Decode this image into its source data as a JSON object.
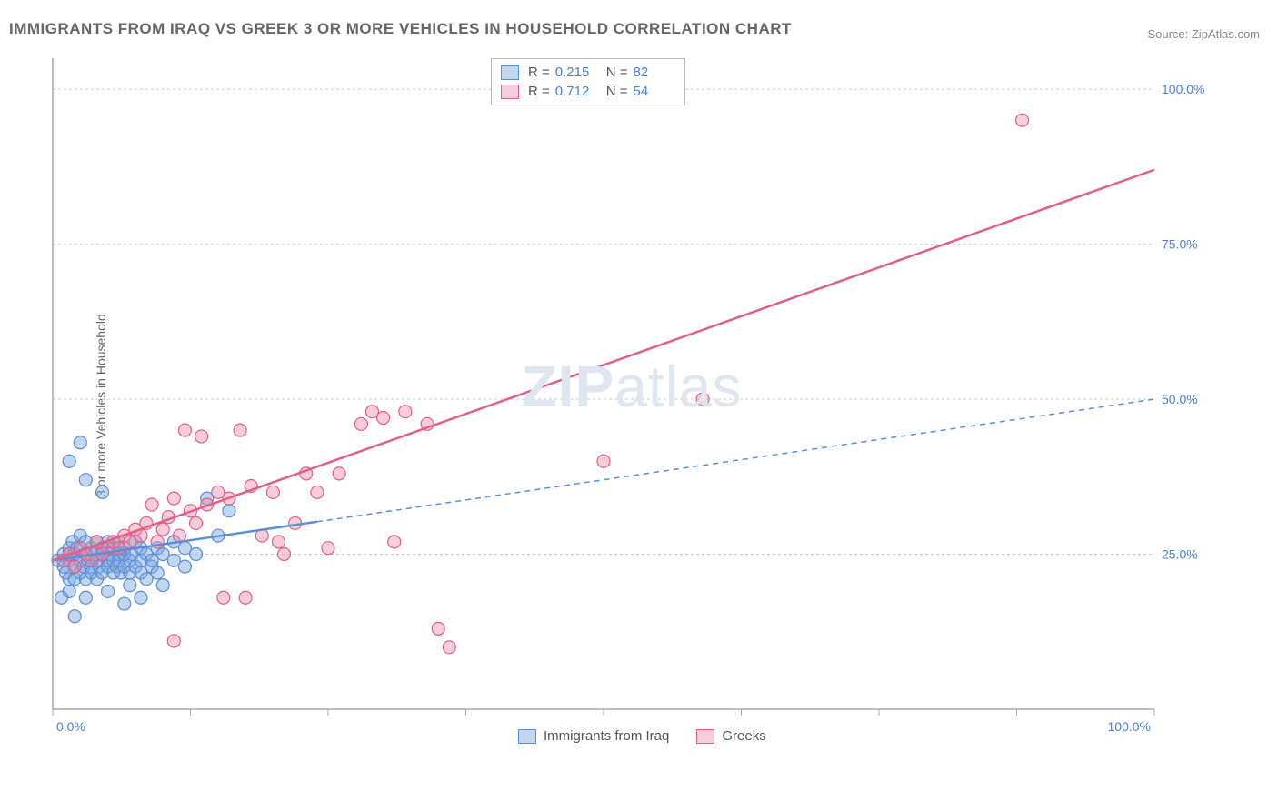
{
  "title": "IMMIGRANTS FROM IRAQ VS GREEK 3 OR MORE VEHICLES IN HOUSEHOLD CORRELATION CHART",
  "source": "Source: ZipAtlas.com",
  "ylabel": "3 or more Vehicles in Household",
  "watermark": {
    "bold": "ZIP",
    "rest": "atlas"
  },
  "chart": {
    "type": "scatter-with-regression",
    "background_color": "#ffffff",
    "grid_color": "#cccccc",
    "axis_color": "#aaaaaa",
    "label_color": "#4a7fd8",
    "label_fontsize": 14,
    "xlim": [
      0,
      100
    ],
    "ylim": [
      0,
      105
    ],
    "x_ticks": [
      0,
      12.5,
      25,
      37.5,
      50,
      62.5,
      75,
      87.5,
      100
    ],
    "x_tick_labels": {
      "0": "0.0%",
      "100": "100.0%"
    },
    "y_gridlines": [
      25,
      50,
      75,
      100
    ],
    "y_grid_labels": {
      "25": "25.0%",
      "50": "50.0%",
      "75": "75.0%",
      "100": "100.0%"
    },
    "marker_radius": 7,
    "marker_opacity": 0.55,
    "series": [
      {
        "name": "Immigrants from Iraq",
        "color": "#6fa0e0",
        "fill": "rgba(120,165,225,0.45)",
        "stroke": "#5a8fd6",
        "R": "0.215",
        "N": "82",
        "regression": {
          "y_at_x0": 24,
          "y_at_x100": 50,
          "solid_until_x": 24,
          "line_width_solid": 2.5,
          "line_width_dashed": 1.5,
          "dash": "6 5"
        },
        "points": [
          [
            0.5,
            24
          ],
          [
            1,
            23
          ],
          [
            1,
            25
          ],
          [
            1.2,
            22
          ],
          [
            1.5,
            26
          ],
          [
            1.5,
            21
          ],
          [
            1.5,
            24
          ],
          [
            1.8,
            27
          ],
          [
            2,
            23
          ],
          [
            2,
            25
          ],
          [
            2,
            21
          ],
          [
            2.2,
            26
          ],
          [
            2.5,
            24
          ],
          [
            2.5,
            22
          ],
          [
            2.5,
            28
          ],
          [
            2.8,
            23
          ],
          [
            3,
            25
          ],
          [
            3,
            21
          ],
          [
            3,
            27
          ],
          [
            3.2,
            24
          ],
          [
            3.5,
            23
          ],
          [
            3.5,
            26
          ],
          [
            3.5,
            22
          ],
          [
            3.8,
            25
          ],
          [
            4,
            24
          ],
          [
            4,
            27
          ],
          [
            4,
            21
          ],
          [
            4.2,
            23
          ],
          [
            4.5,
            25
          ],
          [
            4.5,
            22
          ],
          [
            4.5,
            26
          ],
          [
            5,
            24
          ],
          [
            5,
            23
          ],
          [
            5,
            27
          ],
          [
            5.2,
            25
          ],
          [
            5.5,
            24
          ],
          [
            5.5,
            22
          ],
          [
            5.5,
            26
          ],
          [
            5.8,
            23
          ],
          [
            6,
            25
          ],
          [
            6,
            24
          ],
          [
            6,
            27
          ],
          [
            6.2,
            22
          ],
          [
            6.5,
            25
          ],
          [
            6.5,
            23
          ],
          [
            6.5,
            26
          ],
          [
            7,
            24
          ],
          [
            7,
            22
          ],
          [
            7,
            20
          ],
          [
            7.2,
            25
          ],
          [
            7.5,
            23
          ],
          [
            7.5,
            27
          ],
          [
            8,
            24
          ],
          [
            8,
            22
          ],
          [
            8,
            26
          ],
          [
            8.5,
            25
          ],
          [
            8.5,
            21
          ],
          [
            9,
            23
          ],
          [
            9,
            24
          ],
          [
            9.5,
            26
          ],
          [
            9.5,
            22
          ],
          [
            10,
            25
          ],
          [
            10,
            20
          ],
          [
            11,
            24
          ],
          [
            11,
            27
          ],
          [
            12,
            23
          ],
          [
            12,
            26
          ],
          [
            13,
            25
          ],
          [
            14,
            34
          ],
          [
            15,
            28
          ],
          [
            16,
            32
          ],
          [
            1.5,
            40
          ],
          [
            2.5,
            43
          ],
          [
            3,
            37
          ],
          [
            4.5,
            35
          ],
          [
            3,
            18
          ],
          [
            5,
            19
          ],
          [
            6.5,
            17
          ],
          [
            8,
            18
          ],
          [
            2,
            15
          ],
          [
            1.5,
            19
          ],
          [
            0.8,
            18
          ]
        ]
      },
      {
        "name": "Greeks",
        "color": "#e56f94",
        "fill": "rgba(235,130,160,0.40)",
        "stroke": "#e06088",
        "R": "0.712",
        "N": "54",
        "regression": {
          "y_at_x0": 24,
          "y_at_x100": 87,
          "solid_until_x": 100,
          "line_width_solid": 2.5,
          "line_width_dashed": 0,
          "dash": ""
        },
        "points": [
          [
            1,
            24
          ],
          [
            1.5,
            25
          ],
          [
            2,
            23
          ],
          [
            2.5,
            26
          ],
          [
            3,
            25
          ],
          [
            3.5,
            24
          ],
          [
            4,
            27
          ],
          [
            4.5,
            25
          ],
          [
            5,
            26
          ],
          [
            5.5,
            27
          ],
          [
            6,
            26
          ],
          [
            6.5,
            28
          ],
          [
            7,
            27
          ],
          [
            7.5,
            29
          ],
          [
            8,
            28
          ],
          [
            8.5,
            30
          ],
          [
            9,
            33
          ],
          [
            9.5,
            27
          ],
          [
            10,
            29
          ],
          [
            10.5,
            31
          ],
          [
            11,
            34
          ],
          [
            11.5,
            28
          ],
          [
            12,
            45
          ],
          [
            12.5,
            32
          ],
          [
            13,
            30
          ],
          [
            13.5,
            44
          ],
          [
            14,
            33
          ],
          [
            15,
            35
          ],
          [
            15.5,
            18
          ],
          [
            16,
            34
          ],
          [
            17,
            45
          ],
          [
            17.5,
            18
          ],
          [
            18,
            36
          ],
          [
            19,
            28
          ],
          [
            20,
            35
          ],
          [
            20.5,
            27
          ],
          [
            21,
            25
          ],
          [
            22,
            30
          ],
          [
            23,
            38
          ],
          [
            24,
            35
          ],
          [
            25,
            26
          ],
          [
            26,
            38
          ],
          [
            28,
            46
          ],
          [
            29,
            48
          ],
          [
            30,
            47
          ],
          [
            31,
            27
          ],
          [
            32,
            48
          ],
          [
            34,
            46
          ],
          [
            35,
            13
          ],
          [
            36,
            10
          ],
          [
            50,
            40
          ],
          [
            59,
            50
          ],
          [
            88,
            95
          ],
          [
            11,
            11
          ]
        ]
      }
    ]
  },
  "legend_stats": {
    "R_label": "R =",
    "N_label": "N ="
  }
}
